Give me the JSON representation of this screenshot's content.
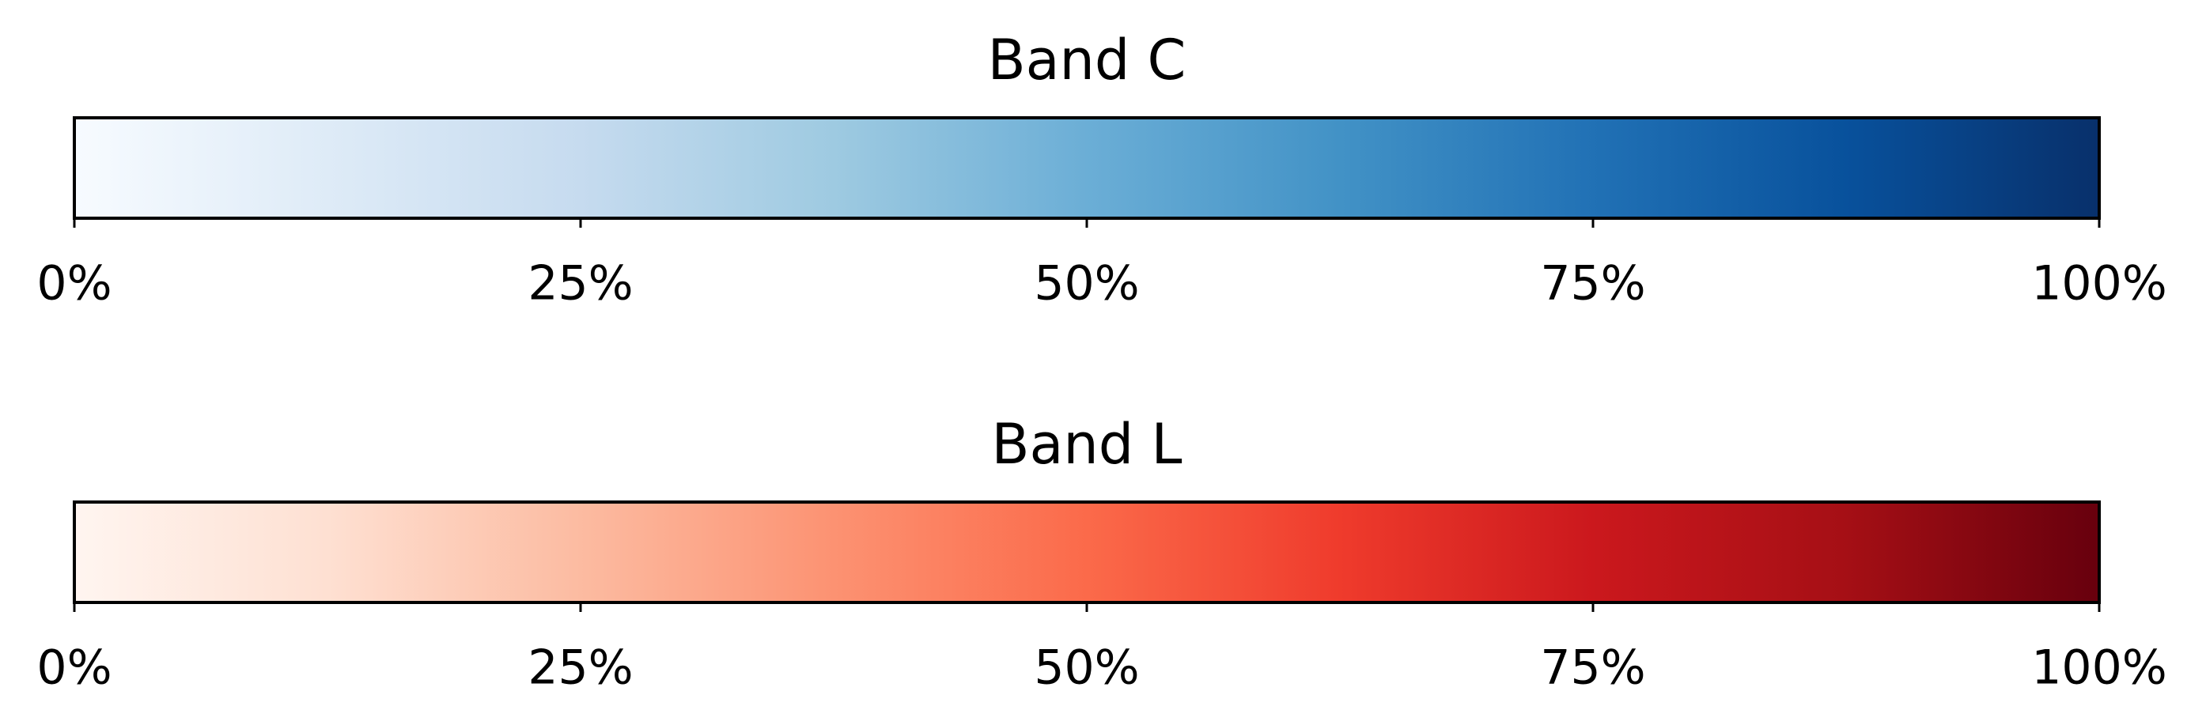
{
  "chart_data": [
    {
      "type": "colorbar",
      "title": "Band C",
      "colors": [
        "#f7fbff",
        "#deebf7",
        "#c6dbef",
        "#9ecae1",
        "#6baed6",
        "#4292c6",
        "#2171b5",
        "#08519c",
        "#08306b"
      ],
      "xlim": [
        0,
        100
      ],
      "xticks": [
        {
          "value": 0,
          "label": "0%"
        },
        {
          "value": 25,
          "label": "25%"
        },
        {
          "value": 50,
          "label": "50%"
        },
        {
          "value": 75,
          "label": "75%"
        },
        {
          "value": 100,
          "label": "100%"
        }
      ]
    },
    {
      "type": "colorbar",
      "title": "Band L",
      "colors": [
        "#fff5f0",
        "#fee0d2",
        "#fcbba1",
        "#fc9272",
        "#fb6a4a",
        "#ef3b2c",
        "#cb181d",
        "#a50f15",
        "#67000d"
      ],
      "xlim": [
        0,
        100
      ],
      "xticks": [
        {
          "value": 0,
          "label": "0%"
        },
        {
          "value": 25,
          "label": "25%"
        },
        {
          "value": 50,
          "label": "50%"
        },
        {
          "value": 75,
          "label": "75%"
        },
        {
          "value": 100,
          "label": "100%"
        }
      ]
    }
  ]
}
